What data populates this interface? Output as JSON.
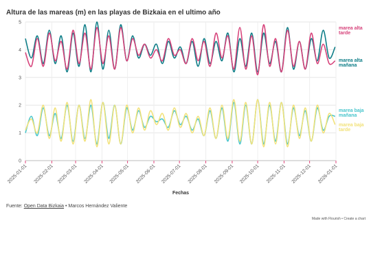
{
  "title": "Altura de las mareas (m) en las playas de Bizkaia en el ultimo año",
  "source": {
    "prefix": "Fuente: ",
    "link_text": "Open Data Bizkaia",
    "suffix": " • Marcos Hernández Valiente"
  },
  "credits": "Made with Flourish • Create a chart",
  "colors": {
    "alta_tarde": "#d6427a",
    "alta_manana": "#0d7d87",
    "baja_manana": "#48c5cc",
    "baja_tarde": "#f2e27a",
    "tick_marks": "#e0467c"
  },
  "chart_data": {
    "type": "line",
    "title": "Altura de las mareas (m) en las playas de Bizkaia en el ultimo año",
    "xlabel": "Fechas",
    "ylabel": "",
    "ylim": [
      0,
      5
    ],
    "yticks": [
      0,
      1,
      2,
      3,
      4,
      5
    ],
    "xlim": [
      "2025-01-01",
      "2026-01-01"
    ],
    "xticks": [
      "2025-01-01",
      "2025-02-01",
      "2025-03-01",
      "2025-04-01",
      "2025-05-01",
      "2025-06-01",
      "2025-07-01",
      "2025-08-01",
      "2025-09-01",
      "2025-10-01",
      "2025-11-01",
      "2025-12-01",
      "2026-01-01"
    ],
    "grid": true,
    "legend": "right-end labels",
    "series": [
      {
        "name": "marea alta tarde",
        "label_lines": [
          "marea alta",
          "tarde"
        ],
        "x": [
          "2025-01-01",
          "2025-01-08",
          "2025-01-15",
          "2025-01-22",
          "2025-01-29",
          "2025-02-05",
          "2025-02-12",
          "2025-02-19",
          "2025-02-26",
          "2025-03-05",
          "2025-03-12",
          "2025-03-19",
          "2025-03-26",
          "2025-04-02",
          "2025-04-09",
          "2025-04-16",
          "2025-04-23",
          "2025-04-30",
          "2025-05-07",
          "2025-05-14",
          "2025-05-21",
          "2025-05-28",
          "2025-06-04",
          "2025-06-11",
          "2025-06-18",
          "2025-06-25",
          "2025-07-02",
          "2025-07-09",
          "2025-07-16",
          "2025-07-23",
          "2025-07-30",
          "2025-08-06",
          "2025-08-13",
          "2025-08-20",
          "2025-08-27",
          "2025-09-03",
          "2025-09-10",
          "2025-09-17",
          "2025-09-24",
          "2025-10-01",
          "2025-10-08",
          "2025-10-15",
          "2025-10-22",
          "2025-10-29",
          "2025-11-05",
          "2025-11-12",
          "2025-11-19",
          "2025-11-26",
          "2025-12-03",
          "2025-12-10",
          "2025-12-17",
          "2025-12-24",
          "2025-12-31"
        ],
        "y": [
          3.9,
          3.4,
          4.4,
          3.4,
          4.6,
          3.6,
          4.3,
          3.3,
          4.7,
          3.5,
          4.6,
          3.3,
          4.8,
          3.5,
          4.5,
          3.3,
          4.8,
          3.6,
          4.4,
          3.8,
          4.2,
          3.7,
          4.0,
          3.6,
          4.4,
          3.8,
          4.0,
          3.5,
          4.4,
          3.6,
          4.3,
          3.4,
          4.6,
          3.7,
          4.5,
          3.3,
          4.8,
          3.3,
          4.5,
          3.1,
          4.9,
          3.4,
          4.4,
          3.2,
          4.7,
          3.4,
          4.3,
          3.3,
          4.6,
          3.5,
          4.2,
          3.5,
          3.6
        ]
      },
      {
        "name": "marea alta mañana",
        "label_lines": [
          "marea alta",
          "mañana"
        ],
        "x": [
          "2025-01-01",
          "2025-01-08",
          "2025-01-15",
          "2025-01-22",
          "2025-01-29",
          "2025-02-05",
          "2025-02-12",
          "2025-02-19",
          "2025-02-26",
          "2025-03-05",
          "2025-03-12",
          "2025-03-19",
          "2025-03-26",
          "2025-04-02",
          "2025-04-09",
          "2025-04-16",
          "2025-04-23",
          "2025-04-30",
          "2025-05-07",
          "2025-05-14",
          "2025-05-21",
          "2025-05-28",
          "2025-06-04",
          "2025-06-11",
          "2025-06-18",
          "2025-06-25",
          "2025-07-02",
          "2025-07-09",
          "2025-07-16",
          "2025-07-23",
          "2025-07-30",
          "2025-08-06",
          "2025-08-13",
          "2025-08-20",
          "2025-08-27",
          "2025-09-03",
          "2025-09-10",
          "2025-09-17",
          "2025-09-24",
          "2025-10-01",
          "2025-10-08",
          "2025-10-15",
          "2025-10-22",
          "2025-10-29",
          "2025-11-05",
          "2025-11-12",
          "2025-11-19",
          "2025-11-26",
          "2025-12-03",
          "2025-12-10",
          "2025-12-17",
          "2025-12-24",
          "2025-12-31"
        ],
        "y": [
          4.4,
          3.7,
          4.5,
          3.5,
          4.7,
          3.5,
          4.5,
          3.2,
          4.6,
          3.4,
          4.9,
          3.2,
          5.0,
          3.3,
          4.7,
          3.3,
          4.9,
          3.6,
          4.5,
          3.7,
          4.2,
          3.8,
          4.2,
          3.5,
          4.3,
          3.7,
          4.1,
          3.5,
          4.3,
          3.4,
          4.4,
          3.5,
          4.3,
          3.6,
          4.6,
          3.2,
          4.4,
          3.4,
          4.6,
          3.2,
          4.6,
          3.5,
          4.3,
          3.2,
          4.8,
          3.3,
          4.3,
          3.3,
          4.4,
          3.6,
          4.7,
          3.7,
          4.1
        ]
      },
      {
        "name": "marea baja mañana",
        "label_lines": [
          "marea baja",
          "mañana"
        ],
        "x": [
          "2025-01-01",
          "2025-01-08",
          "2025-01-15",
          "2025-01-22",
          "2025-01-29",
          "2025-02-05",
          "2025-02-12",
          "2025-02-19",
          "2025-02-26",
          "2025-03-05",
          "2025-03-12",
          "2025-03-19",
          "2025-03-26",
          "2025-04-02",
          "2025-04-09",
          "2025-04-16",
          "2025-04-23",
          "2025-04-30",
          "2025-05-07",
          "2025-05-14",
          "2025-05-21",
          "2025-05-28",
          "2025-06-04",
          "2025-06-11",
          "2025-06-18",
          "2025-06-25",
          "2025-07-02",
          "2025-07-09",
          "2025-07-16",
          "2025-07-23",
          "2025-07-30",
          "2025-08-06",
          "2025-08-13",
          "2025-08-20",
          "2025-08-27",
          "2025-09-03",
          "2025-09-10",
          "2025-09-17",
          "2025-09-24",
          "2025-10-01",
          "2025-10-08",
          "2025-10-15",
          "2025-10-22",
          "2025-10-29",
          "2025-11-05",
          "2025-11-12",
          "2025-11-19",
          "2025-11-26",
          "2025-12-03",
          "2025-12-10",
          "2025-12-17",
          "2025-12-24",
          "2025-12-31"
        ],
        "y": [
          1.0,
          1.6,
          0.9,
          1.9,
          0.9,
          1.7,
          0.8,
          2.0,
          0.7,
          2.0,
          0.8,
          2.0,
          0.6,
          2.1,
          0.8,
          2.0,
          0.6,
          1.9,
          1.1,
          1.8,
          1.2,
          1.6,
          1.4,
          1.5,
          1.2,
          1.8,
          1.3,
          1.6,
          1.1,
          1.5,
          0.9,
          1.8,
          0.8,
          1.9,
          0.7,
          2.1,
          0.6,
          2.0,
          0.6,
          2.2,
          0.6,
          2.0,
          0.7,
          2.1,
          0.6,
          1.9,
          0.9,
          1.8,
          0.7,
          1.9,
          1.1,
          1.6,
          1.6
        ]
      },
      {
        "name": "marea baja tarde",
        "label_lines": [
          "marea baja",
          "tarde"
        ],
        "x": [
          "2025-01-01",
          "2025-01-08",
          "2025-01-15",
          "2025-01-22",
          "2025-01-29",
          "2025-02-05",
          "2025-02-12",
          "2025-02-19",
          "2025-02-26",
          "2025-03-05",
          "2025-03-12",
          "2025-03-19",
          "2025-03-26",
          "2025-04-02",
          "2025-04-09",
          "2025-04-16",
          "2025-04-23",
          "2025-04-30",
          "2025-05-07",
          "2025-05-14",
          "2025-05-21",
          "2025-05-28",
          "2025-06-04",
          "2025-06-11",
          "2025-06-18",
          "2025-06-25",
          "2025-07-02",
          "2025-07-09",
          "2025-07-16",
          "2025-07-23",
          "2025-07-30",
          "2025-08-06",
          "2025-08-13",
          "2025-08-20",
          "2025-08-27",
          "2025-09-03",
          "2025-09-10",
          "2025-09-17",
          "2025-09-24",
          "2025-10-01",
          "2025-10-08",
          "2025-10-15",
          "2025-10-22",
          "2025-10-29",
          "2025-11-05",
          "2025-11-12",
          "2025-11-19",
          "2025-11-26",
          "2025-12-03",
          "2025-12-10",
          "2025-12-17",
          "2025-12-24",
          "2025-12-31"
        ],
        "y": [
          1.1,
          1.5,
          1.0,
          2.0,
          0.8,
          1.9,
          0.7,
          2.1,
          0.6,
          2.0,
          0.7,
          2.2,
          0.5,
          2.1,
          0.6,
          2.0,
          0.6,
          2.0,
          1.0,
          1.9,
          1.1,
          1.8,
          1.3,
          1.7,
          1.1,
          1.9,
          1.2,
          1.7,
          1.0,
          1.6,
          0.9,
          1.9,
          0.8,
          2.0,
          0.8,
          2.2,
          0.7,
          2.1,
          0.6,
          2.2,
          0.5,
          2.1,
          0.6,
          2.1,
          0.5,
          2.0,
          0.8,
          1.9,
          0.7,
          2.0,
          1.0,
          1.7,
          1.3
        ]
      }
    ]
  }
}
